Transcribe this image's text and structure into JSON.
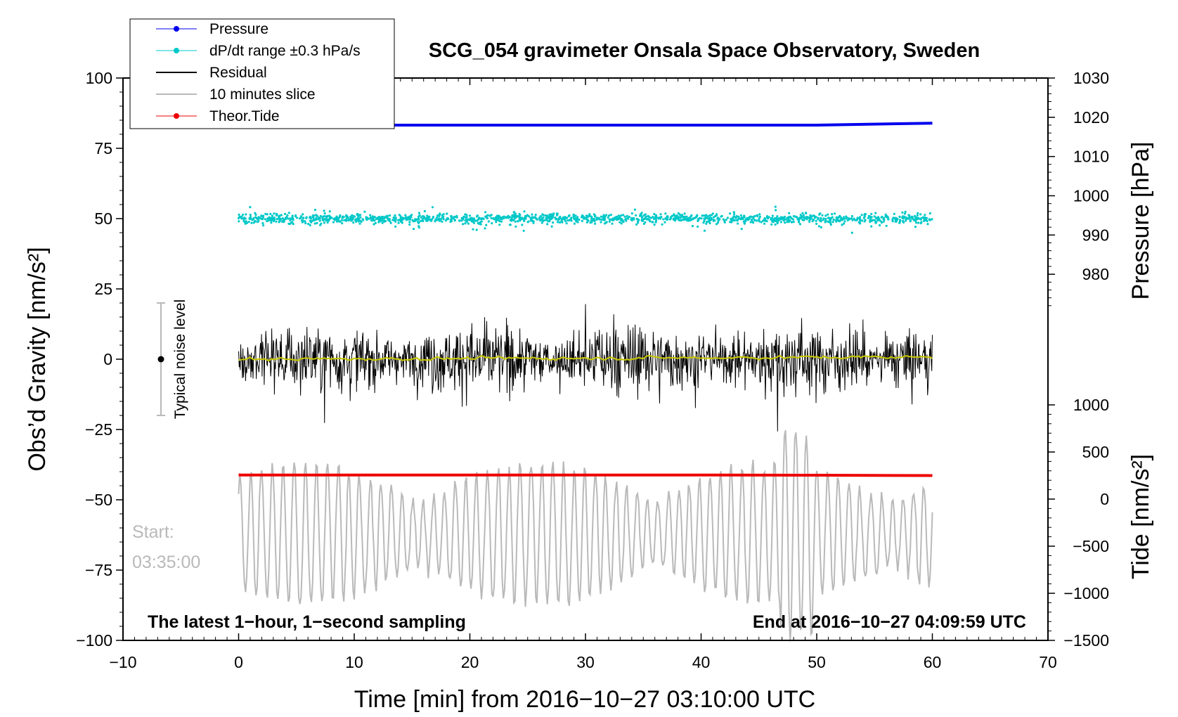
{
  "chart_data": {
    "type": "line",
    "title": "SCG_054 gravimeter Onsala Space Observatory, Sweden",
    "xlabel": "Time [min] from 2016−10−27 03:10:00 UTC",
    "ylabel_left": "Obs’d Gravity [nm/s²]",
    "ylabel_right_top": "Pressure [hPa]",
    "ylabel_right_bottom": "Tide [nm/s²]",
    "xlim": [
      -10,
      70
    ],
    "ylim_left": [
      -100,
      100
    ],
    "x_ticks": [
      -10,
      0,
      10,
      20,
      30,
      40,
      50,
      60,
      70
    ],
    "x_tick_labels": [
      "−10",
      "0",
      "10",
      "20",
      "30",
      "40",
      "50",
      "60",
      "70"
    ],
    "y_left_ticks": [
      100,
      75,
      50,
      25,
      0,
      -25,
      -50,
      -75,
      -100
    ],
    "y_left_tick_labels": [
      "100",
      "75",
      "50",
      "25",
      "0",
      "−25",
      "−50",
      "−75",
      "−100"
    ],
    "pressure_axis": {
      "ticks": [
        1030,
        1020,
        1010,
        1000,
        990,
        980
      ],
      "tick_labels": [
        "1030",
        "1020",
        "1010",
        "1000",
        "990",
        "980"
      ],
      "range": [
        970,
        1030
      ]
    },
    "tide_axis": {
      "ticks": [
        1000,
        500,
        0,
        -500,
        -1000,
        -1500
      ],
      "tick_labels": [
        "1000",
        "500",
        "0",
        "−500",
        "−1000",
        "−1500"
      ],
      "range": [
        -1500,
        1000
      ]
    },
    "legend": [
      {
        "label": "Pressure",
        "color": "#0000ee",
        "style": "line-dot"
      },
      {
        "label": "dP/dt range ±0.3 hPa/s",
        "color": "#00c8c8",
        "style": "line-dot"
      },
      {
        "label": "Residual",
        "color": "#000000",
        "style": "line"
      },
      {
        "label": "10 minutes slice",
        "color": "#b9b9b9",
        "style": "line"
      },
      {
        "label": "Theor.Tide",
        "color": "#ee0000",
        "style": "line-dot"
      }
    ],
    "legend_position": "top-left",
    "series": [
      {
        "name": "Pressure",
        "color": "#0000ee",
        "x_range": [
          0,
          60
        ],
        "values_hpa": [
          1018.0,
          1018.0,
          1018.0,
          1018.0,
          1018.0,
          1018.0,
          1018.5
        ]
      },
      {
        "name": "dP/dt range",
        "color": "#00c8c8",
        "x_range": [
          0,
          60
        ],
        "center_left_units": 50,
        "spread_left_units": 10
      },
      {
        "name": "Residual",
        "color": "#000000",
        "x_range": [
          0,
          60
        ],
        "center_left_units": 0,
        "spread_left_units": 38
      },
      {
        "name": "Residual smoothed",
        "color": "#c8c800",
        "x_range": [
          0,
          60
        ],
        "center_left_units": 0
      },
      {
        "name": "Theor.Tide",
        "color": "#ee0000",
        "x_range": [
          0,
          60
        ],
        "values_nm_s2": [
          255,
          256,
          256,
          256,
          256,
          254,
          250
        ]
      },
      {
        "name": "10 minutes slice",
        "color": "#b9b9b9",
        "x_range": [
          0,
          60
        ],
        "center_left_units": -62,
        "spread_left_units": 30
      }
    ],
    "noise_indicator": {
      "label": "Typical noise level",
      "center": 0,
      "half_range": 20
    },
    "annotations": {
      "bottom_left": "The latest 1−hour, 1−second sampling",
      "bottom_right": "End at 2016−10−27 04:09:59 UTC",
      "start_label": "Start:",
      "start_time": "03:35:00"
    }
  }
}
